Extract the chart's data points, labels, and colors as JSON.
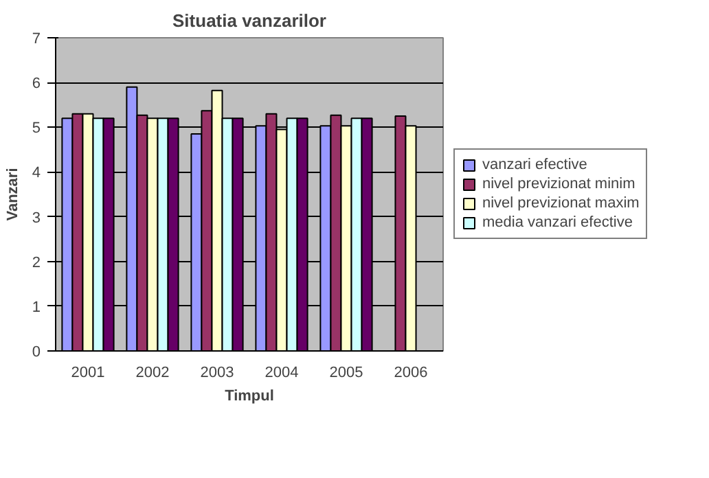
{
  "chart_data": {
    "type": "bar",
    "title": "Situatia vanzarilor",
    "xlabel": "Timpul",
    "ylabel": "Vanzari",
    "categories": [
      "2001",
      "2002",
      "2003",
      "2004",
      "2005",
      "2006"
    ],
    "series": [
      {
        "name": "vanzari efective",
        "color": "#9999ff",
        "values": [
          5.2,
          5.9,
          4.85,
          5.03,
          5.03,
          null
        ]
      },
      {
        "name": "nivel previzionat minim",
        "color": "#993366",
        "values": [
          5.3,
          5.27,
          5.37,
          5.3,
          5.27,
          5.25
        ]
      },
      {
        "name": "nivel previzionat maxim",
        "color": "#ffffcc",
        "values": [
          5.3,
          5.2,
          5.82,
          4.95,
          5.03,
          5.03
        ]
      },
      {
        "name": "media vanzari efective",
        "color": "#ccffff",
        "values": [
          5.2,
          5.2,
          5.2,
          5.2,
          5.2,
          null
        ]
      },
      {
        "color": "#660066",
        "values": [
          5.2,
          5.2,
          5.2,
          5.2,
          5.2,
          null
        ]
      }
    ],
    "ylim": [
      0,
      7
    ],
    "yticks": [
      0,
      1,
      2,
      3,
      4,
      5,
      6,
      7
    ],
    "grid": "y",
    "legend": "right"
  }
}
